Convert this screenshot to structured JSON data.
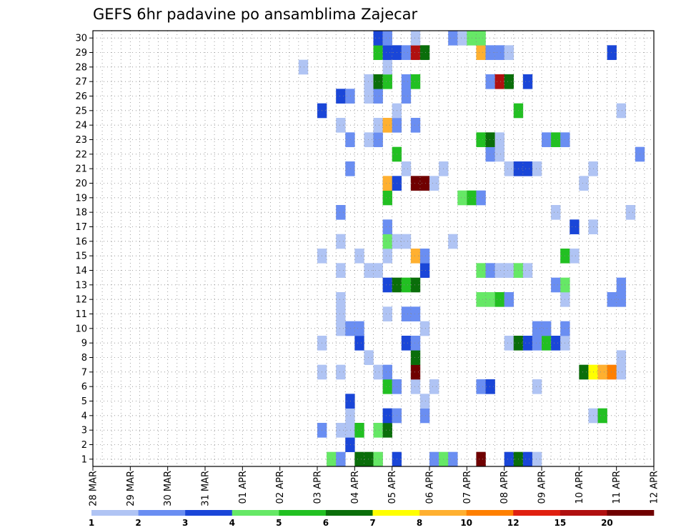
{
  "chart_data": {
    "type": "heatmap",
    "title": "GEFS 6hr padavine po ansamblima Zajecar",
    "y_ticks": [
      "1",
      "2",
      "3",
      "4",
      "5",
      "6",
      "7",
      "8",
      "9",
      "10",
      "11",
      "12",
      "13",
      "14",
      "15",
      "16",
      "17",
      "18",
      "19",
      "20",
      "21",
      "22",
      "23",
      "24",
      "25",
      "26",
      "27",
      "28",
      "29",
      "30"
    ],
    "x_ticks": [
      "28 MAR",
      "29 MAR",
      "30 MAR",
      "31 MAR",
      "01 APR",
      "02 APR",
      "03 APR",
      "04 APR",
      "05 APR",
      "06 APR",
      "07 APR",
      "08 APR",
      "09 APR",
      "10 APR",
      "11 APR",
      "12 APR"
    ],
    "color_levels": [
      "1",
      "2",
      "3",
      "4",
      "5",
      "6",
      "7",
      "8",
      "10",
      "12",
      "15",
      "20"
    ],
    "colors": [
      "#b0c4f4",
      "#6a8ef2",
      "#1a46d8",
      "#66e866",
      "#22c022",
      "#0a6e0a",
      "#ffff00",
      "#ffb030",
      "#ff8000",
      "#e02010",
      "#b01010",
      "#700000"
    ],
    "cell_columns": 60,
    "cells": [
      [
        1,
        0,
        25,
        3
      ],
      [
        1,
        0,
        26,
        1
      ],
      [
        1,
        0,
        28,
        5
      ],
      [
        1,
        0,
        29,
        5
      ],
      [
        1,
        0,
        30,
        3
      ],
      [
        1,
        0,
        32,
        2
      ],
      [
        1,
        0,
        36,
        1
      ],
      [
        1,
        0,
        37,
        3
      ],
      [
        1,
        0,
        38,
        1
      ],
      [
        1,
        0,
        41,
        11
      ],
      [
        1,
        0,
        44,
        2
      ],
      [
        1,
        0,
        45,
        5
      ],
      [
        1,
        0,
        46,
        2
      ],
      [
        1,
        0,
        47,
        0
      ],
      [
        1,
        1,
        27,
        2
      ],
      [
        1,
        2,
        24,
        1
      ],
      [
        1,
        2,
        26,
        0
      ],
      [
        1,
        2,
        27,
        0
      ],
      [
        1,
        2,
        28,
        4
      ],
      [
        1,
        2,
        30,
        3
      ],
      [
        1,
        2,
        31,
        5
      ],
      [
        1,
        3,
        27,
        0
      ],
      [
        1,
        3,
        31,
        2
      ],
      [
        1,
        3,
        32,
        1
      ],
      [
        1,
        3,
        35,
        1
      ],
      [
        1,
        3,
        53,
        0
      ],
      [
        1,
        3,
        54,
        4
      ],
      [
        1,
        4,
        27,
        2
      ],
      [
        1,
        4,
        35,
        0
      ],
      [
        1,
        5,
        31,
        4
      ],
      [
        1,
        5,
        32,
        1
      ],
      [
        1,
        5,
        34,
        0
      ],
      [
        1,
        5,
        41,
        1
      ],
      [
        1,
        5,
        42,
        2
      ],
      [
        1,
        5,
        36,
        0
      ],
      [
        1,
        5,
        47,
        0
      ],
      [
        1,
        6,
        24,
        0
      ],
      [
        1,
        6,
        26,
        0
      ],
      [
        1,
        6,
        30,
        0
      ],
      [
        1,
        6,
        31,
        1
      ],
      [
        1,
        6,
        34,
        11
      ],
      [
        1,
        6,
        52,
        5
      ],
      [
        1,
        6,
        53,
        6
      ],
      [
        1,
        6,
        54,
        7
      ],
      [
        1,
        6,
        55,
        8
      ],
      [
        1,
        6,
        56,
        0
      ],
      [
        1,
        7,
        29,
        0
      ],
      [
        1,
        7,
        34,
        5
      ],
      [
        1,
        7,
        56,
        0
      ],
      [
        1,
        8,
        24,
        0
      ],
      [
        1,
        8,
        28,
        2
      ],
      [
        1,
        8,
        33,
        2
      ],
      [
        1,
        8,
        34,
        1
      ],
      [
        1,
        8,
        44,
        0
      ],
      [
        1,
        8,
        45,
        5
      ],
      [
        1,
        8,
        46,
        2
      ],
      [
        1,
        8,
        47,
        1
      ],
      [
        1,
        8,
        48,
        4
      ],
      [
        1,
        8,
        49,
        2
      ],
      [
        1,
        8,
        50,
        0
      ],
      [
        1,
        9,
        26,
        0
      ],
      [
        1,
        9,
        27,
        1
      ],
      [
        1,
        9,
        28,
        1
      ],
      [
        1,
        9,
        35,
        0
      ],
      [
        1,
        9,
        47,
        1
      ],
      [
        1,
        9,
        48,
        1
      ],
      [
        1,
        9,
        50,
        1
      ],
      [
        1,
        10,
        26,
        0
      ],
      [
        1,
        10,
        31,
        0
      ],
      [
        1,
        10,
        33,
        1
      ],
      [
        1,
        10,
        34,
        1
      ],
      [
        1,
        11,
        26,
        0
      ],
      [
        1,
        11,
        41,
        3
      ],
      [
        1,
        11,
        42,
        3
      ],
      [
        1,
        11,
        43,
        4
      ],
      [
        1,
        11,
        44,
        1
      ],
      [
        1,
        11,
        50,
        0
      ],
      [
        1,
        11,
        55,
        1
      ],
      [
        1,
        11,
        56,
        1
      ],
      [
        1,
        12,
        31,
        2
      ],
      [
        1,
        12,
        32,
        5
      ],
      [
        1,
        12,
        33,
        4
      ],
      [
        1,
        12,
        34,
        5
      ],
      [
        1,
        12,
        49,
        1
      ],
      [
        1,
        12,
        50,
        3
      ],
      [
        1,
        12,
        56,
        1
      ],
      [
        1,
        13,
        26,
        0
      ],
      [
        1,
        13,
        29,
        0
      ],
      [
        1,
        13,
        30,
        0
      ],
      [
        1,
        13,
        35,
        2
      ],
      [
        1,
        13,
        41,
        3
      ],
      [
        1,
        13,
        42,
        1
      ],
      [
        1,
        13,
        43,
        0
      ],
      [
        1,
        13,
        44,
        0
      ],
      [
        1,
        13,
        45,
        3
      ],
      [
        1,
        13,
        46,
        0
      ],
      [
        1,
        14,
        24,
        0
      ],
      [
        1,
        14,
        28,
        0
      ],
      [
        1,
        14,
        31,
        0
      ],
      [
        1,
        14,
        34,
        7
      ],
      [
        1,
        14,
        35,
        1
      ],
      [
        1,
        14,
        50,
        4
      ],
      [
        1,
        14,
        51,
        0
      ],
      [
        1,
        15,
        26,
        0
      ],
      [
        1,
        15,
        31,
        3
      ],
      [
        1,
        15,
        32,
        0
      ],
      [
        1,
        15,
        33,
        0
      ],
      [
        1,
        15,
        38,
        0
      ],
      [
        1,
        16,
        31,
        1
      ],
      [
        1,
        16,
        51,
        2
      ],
      [
        1,
        16,
        53,
        0
      ],
      [
        1,
        17,
        26,
        1
      ],
      [
        1,
        17,
        49,
        0
      ],
      [
        1,
        17,
        57,
        0
      ],
      [
        1,
        18,
        31,
        4
      ],
      [
        1,
        18,
        39,
        3
      ],
      [
        1,
        18,
        40,
        4
      ],
      [
        1,
        18,
        41,
        1
      ],
      [
        1,
        19,
        31,
        7
      ],
      [
        1,
        19,
        32,
        2
      ],
      [
        1,
        19,
        34,
        11
      ],
      [
        1,
        19,
        35,
        11
      ],
      [
        1,
        19,
        36,
        0
      ],
      [
        1,
        19,
        52,
        0
      ],
      [
        1,
        20,
        27,
        1
      ],
      [
        1,
        20,
        33,
        0
      ],
      [
        1,
        20,
        37,
        0
      ],
      [
        1,
        20,
        44,
        0
      ],
      [
        1,
        20,
        45,
        2
      ],
      [
        1,
        20,
        46,
        2
      ],
      [
        1,
        20,
        47,
        0
      ],
      [
        1,
        20,
        53,
        0
      ],
      [
        1,
        21,
        32,
        4
      ],
      [
        1,
        21,
        42,
        1
      ],
      [
        1,
        21,
        43,
        0
      ],
      [
        1,
        21,
        58,
        1
      ],
      [
        1,
        22,
        27,
        1
      ],
      [
        1,
        22,
        29,
        0
      ],
      [
        1,
        22,
        30,
        1
      ],
      [
        1,
        22,
        41,
        4
      ],
      [
        1,
        22,
        42,
        5
      ],
      [
        1,
        22,
        43,
        0
      ],
      [
        1,
        22,
        48,
        1
      ],
      [
        1,
        22,
        49,
        4
      ],
      [
        1,
        22,
        50,
        1
      ],
      [
        1,
        23,
        26,
        0
      ],
      [
        1,
        23,
        30,
        0
      ],
      [
        1,
        23,
        31,
        7
      ],
      [
        1,
        23,
        32,
        1
      ],
      [
        1,
        23,
        34,
        1
      ],
      [
        1,
        24,
        24,
        2
      ],
      [
        1,
        24,
        32,
        0
      ],
      [
        1,
        24,
        45,
        4
      ],
      [
        1,
        24,
        56,
        0
      ],
      [
        1,
        25,
        26,
        2
      ],
      [
        1,
        25,
        27,
        1
      ],
      [
        1,
        25,
        29,
        0
      ],
      [
        1,
        25,
        30,
        1
      ],
      [
        1,
        25,
        33,
        1
      ],
      [
        1,
        26,
        29,
        0
      ],
      [
        1,
        26,
        30,
        5
      ],
      [
        1,
        26,
        31,
        4
      ],
      [
        1,
        26,
        33,
        1
      ],
      [
        1,
        26,
        34,
        4
      ],
      [
        1,
        26,
        42,
        1
      ],
      [
        1,
        26,
        43,
        10
      ],
      [
        1,
        26,
        44,
        5
      ],
      [
        1,
        26,
        46,
        2
      ],
      [
        1,
        27,
        22,
        0
      ],
      [
        1,
        27,
        31,
        0
      ],
      [
        1,
        28,
        30,
        4
      ],
      [
        1,
        28,
        31,
        2
      ],
      [
        1,
        28,
        32,
        2
      ],
      [
        1,
        28,
        33,
        1
      ],
      [
        1,
        28,
        34,
        10
      ],
      [
        1,
        28,
        35,
        5
      ],
      [
        1,
        28,
        41,
        7
      ],
      [
        1,
        28,
        42,
        1
      ],
      [
        1,
        28,
        43,
        1
      ],
      [
        1,
        28,
        44,
        0
      ],
      [
        1,
        28,
        55,
        2
      ],
      [
        1,
        29,
        30,
        2
      ],
      [
        1,
        29,
        31,
        1
      ],
      [
        1,
        29,
        34,
        0
      ],
      [
        1,
        29,
        38,
        1
      ],
      [
        1,
        29,
        39,
        0
      ],
      [
        1,
        29,
        40,
        3
      ],
      [
        1,
        29,
        41,
        3
      ]
    ]
  }
}
